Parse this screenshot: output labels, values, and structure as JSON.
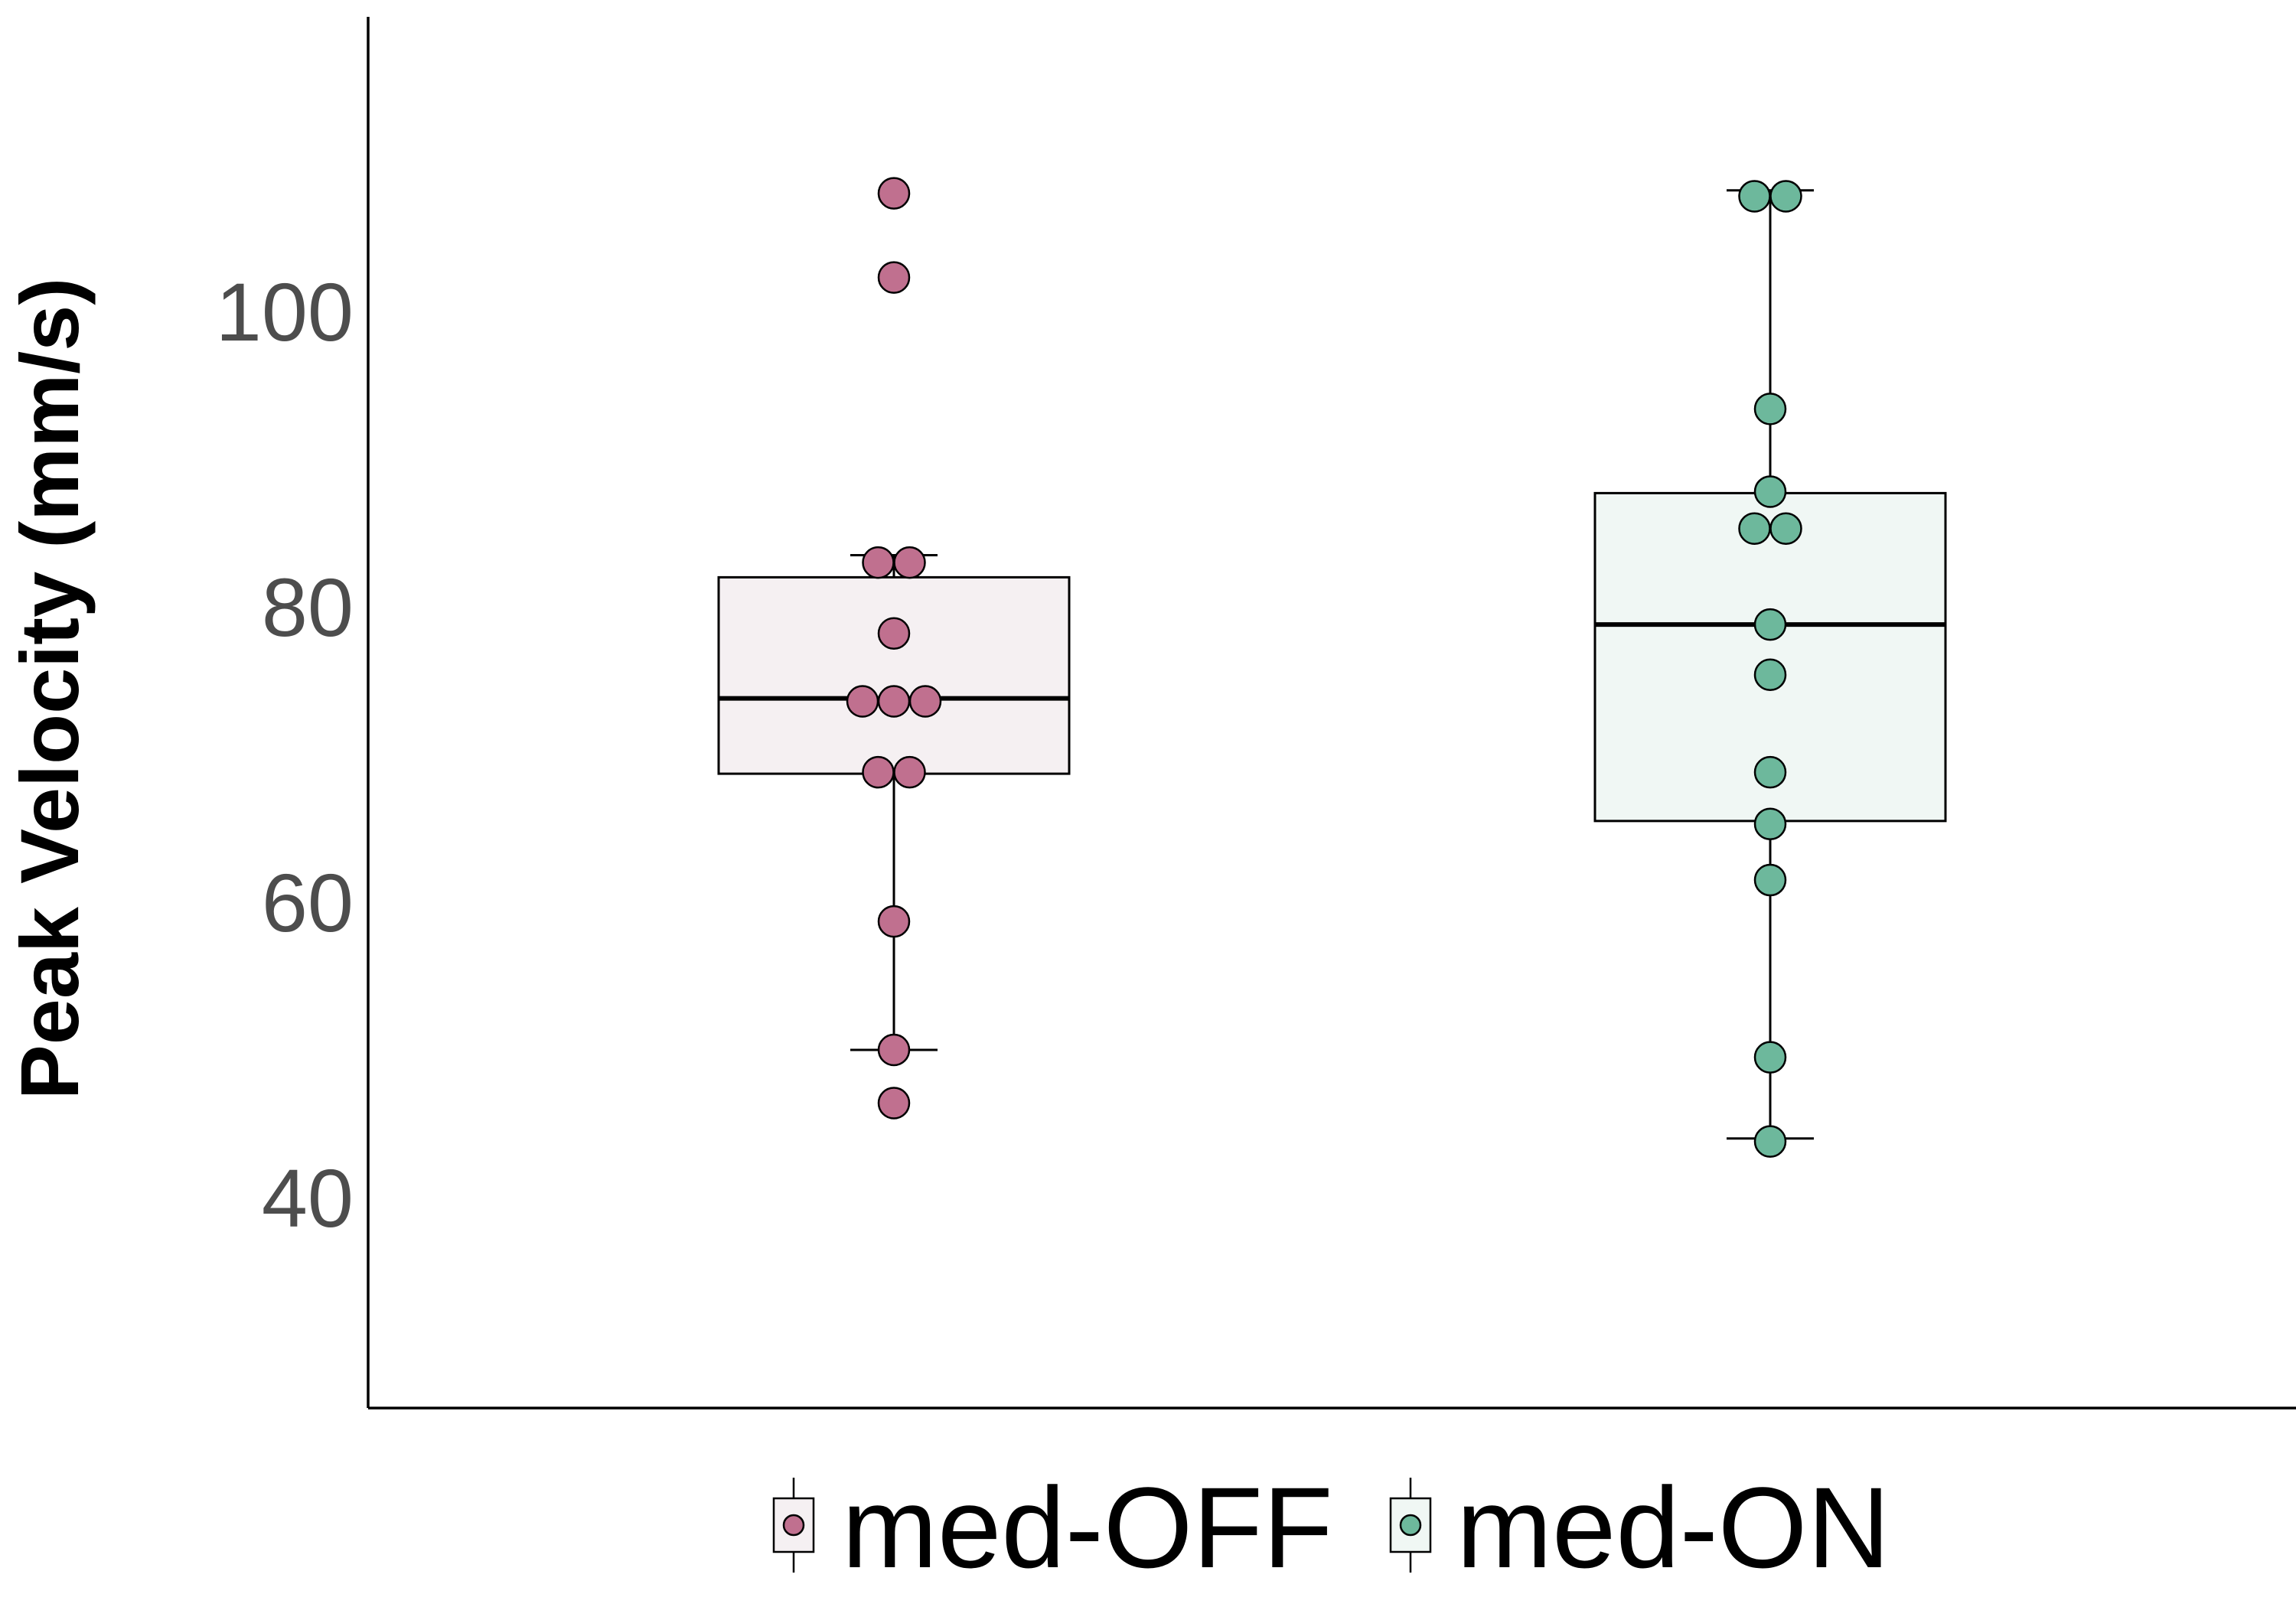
{
  "chart_data": {
    "type": "box",
    "ylabel": "Peak Velocity (mm/s)",
    "xlabel": "",
    "ylim": [
      28,
      118
    ],
    "yticks": [
      40,
      60,
      80,
      100
    ],
    "grid": false,
    "legend_position": "bottom",
    "categories": [
      "med-OFF",
      "med-ON"
    ],
    "series": [
      {
        "name": "med-OFF",
        "fill_color": "#f5f0f2",
        "point_color": "#c0708f",
        "box": {
          "whisker_low": 50,
          "q1": 68.7,
          "median": 73.8,
          "q3": 82,
          "whisker_high": 83.5
        },
        "points": [
          108,
          102.3,
          83,
          83,
          78.2,
          73.6,
          73.6,
          73.6,
          68.8,
          68.8,
          58.7,
          50,
          46.4
        ]
      },
      {
        "name": "med-ON",
        "fill_color": "#f0f7f4",
        "point_color": "#6db89c",
        "box": {
          "whisker_low": 44,
          "q1": 65.5,
          "median": 78.8,
          "q3": 87.7,
          "whisker_high": 108.2
        },
        "points": [
          107.8,
          107.8,
          93.4,
          87.8,
          85.3,
          85.3,
          78.8,
          75.4,
          68.8,
          65.3,
          61.5,
          49.5,
          43.8
        ]
      }
    ]
  }
}
